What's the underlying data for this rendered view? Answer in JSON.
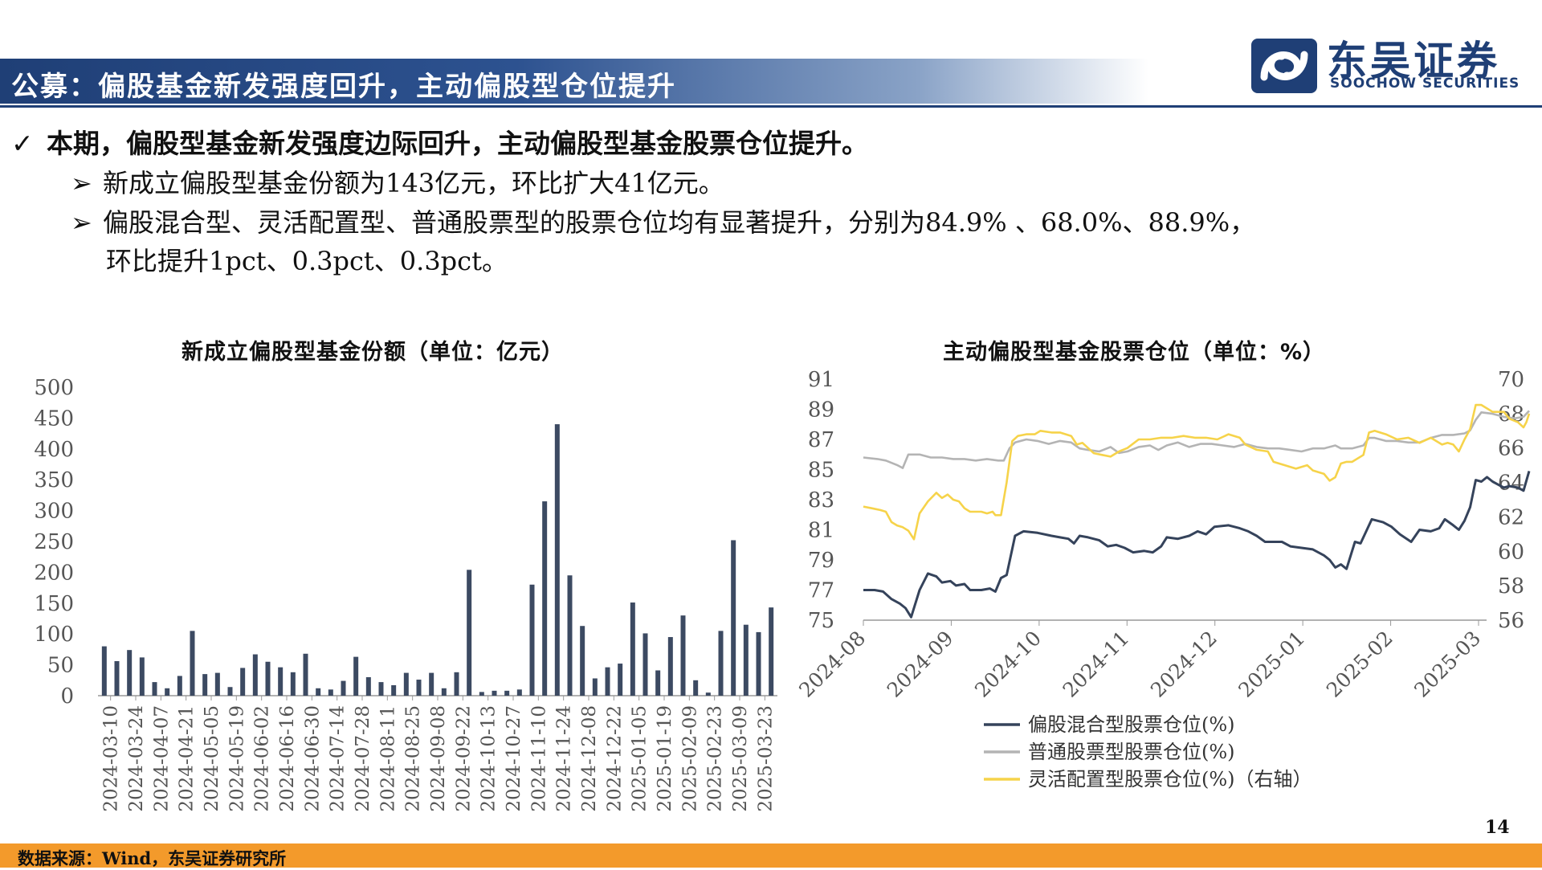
{
  "header": {
    "title": "公募：偏股基金新发强度回升，主动偏股型仓位提升",
    "logo_cn": "东吴证券",
    "logo_en": "SOOCHOW SECURITIES"
  },
  "bullets": {
    "main_mark": "✓",
    "main": "本期，偏股型基金新发强度边际回升，主动偏股型基金股票仓位提升。",
    "sub_mark": "➢",
    "sub1": "新成立偏股型基金份额为143亿元，环比扩大41亿元。",
    "sub2_line1": "偏股混合型、灵活配置型、普通股票型的股票仓位均有显著提升，分别为84.9% 、68.0%、88.9%，",
    "sub2_line2": "环比提升1pct、0.3pct、0.3pct。"
  },
  "footer": {
    "source": "数据来源：Wind，东吴证券研究所",
    "page": "14"
  },
  "colors": {
    "brand": "#1f3f76",
    "bar": "#3c4a62",
    "series_mixed": "#35435b",
    "series_stock": "#b4b4b4",
    "series_flex": "#f6d34a",
    "footer": "#f39a2b"
  },
  "chart_data": [
    {
      "type": "bar",
      "title": "新成立偏股型基金份额（单位：亿元）",
      "ylim": [
        0,
        500
      ],
      "yticks": [
        0,
        50,
        100,
        150,
        200,
        250,
        300,
        350,
        400,
        450,
        500
      ],
      "tick_labels": [
        "2024-03-10",
        "2024-03-24",
        "2024-04-07",
        "2024-04-21",
        "2024-05-05",
        "2024-05-19",
        "2024-06-02",
        "2024-06-16",
        "2024-06-30",
        "2024-07-14",
        "2024-07-28",
        "2024-08-11",
        "2024-08-25",
        "2024-09-08",
        "2024-09-22",
        "2024-10-13",
        "2024-10-27",
        "2024-11-10",
        "2024-11-24",
        "2024-12-08",
        "2024-12-22",
        "2025-01-05",
        "2025-01-19",
        "2025-02-09",
        "2025-02-23",
        "2025-03-09",
        "2025-03-23"
      ],
      "values": [
        80,
        56,
        74,
        62,
        22,
        12,
        32,
        105,
        35,
        37,
        14,
        45,
        67,
        55,
        46,
        38,
        68,
        12,
        10,
        24,
        63,
        30,
        22,
        17,
        37,
        26,
        37,
        12,
        38,
        204,
        6,
        8,
        8,
        10,
        180,
        315,
        440,
        195,
        113,
        28,
        46,
        52,
        151,
        101,
        41,
        95,
        130,
        25,
        5,
        105,
        252,
        115,
        103,
        143
      ]
    },
    {
      "type": "line",
      "title": "主动偏股型基金股票仓位（单位：%）",
      "x_ticks": [
        "2024-08",
        "2024-09",
        "2024-10",
        "2024-11",
        "2024-12",
        "2025-01",
        "2025-02",
        "2025-03"
      ],
      "x_range_days": [
        0,
        219
      ],
      "ylim_left": [
        75,
        91
      ],
      "yticks_left": [
        75,
        77,
        79,
        81,
        83,
        85,
        87,
        89,
        91
      ],
      "ylim_right": [
        56,
        70
      ],
      "yticks_right": [
        56,
        58,
        60,
        62,
        64,
        66,
        68,
        70
      ],
      "series": [
        {
          "name": "偏股混合型股票仓位(%)",
          "axis": "left",
          "points": [
            [
              0,
              77
            ],
            [
              4,
              77
            ],
            [
              7,
              76.9
            ],
            [
              10,
              76.4
            ],
            [
              13,
              76.1
            ],
            [
              15,
              75.8
            ],
            [
              17,
              75.2
            ],
            [
              20,
              77
            ],
            [
              23,
              78.1
            ],
            [
              26,
              77.9
            ],
            [
              28,
              77.5
            ],
            [
              31,
              77.6
            ],
            [
              33,
              77.3
            ],
            [
              36,
              77.4
            ],
            [
              38,
              77
            ],
            [
              42,
              77
            ],
            [
              45,
              77.1
            ],
            [
              47,
              76.9
            ],
            [
              49,
              77.8
            ],
            [
              51,
              78
            ],
            [
              54,
              80.6
            ],
            [
              57,
              80.9
            ],
            [
              62,
              80.8
            ],
            [
              67,
              80.6
            ],
            [
              70,
              80.5
            ],
            [
              73,
              80.4
            ],
            [
              75,
              80.1
            ],
            [
              77,
              80.6
            ],
            [
              80,
              80.5
            ],
            [
              84,
              80.3
            ],
            [
              87,
              79.9
            ],
            [
              90,
              80
            ],
            [
              93,
              79.8
            ],
            [
              96,
              79.5
            ],
            [
              100,
              79.6
            ],
            [
              103,
              79.5
            ],
            [
              106,
              79.9
            ],
            [
              108,
              80.5
            ],
            [
              112,
              80.4
            ],
            [
              116,
              80.6
            ],
            [
              119,
              80.9
            ],
            [
              122,
              80.7
            ],
            [
              125,
              81.2
            ],
            [
              130,
              81.3
            ],
            [
              134,
              81.1
            ],
            [
              137,
              80.9
            ],
            [
              140,
              80.6
            ],
            [
              143,
              80.2
            ],
            [
              146,
              80.2
            ],
            [
              149,
              80.2
            ],
            [
              152,
              79.9
            ],
            [
              156,
              79.8
            ],
            [
              160,
              79.7
            ],
            [
              164,
              79.3
            ],
            [
              166,
              79
            ],
            [
              168,
              78.5
            ],
            [
              170,
              78.7
            ],
            [
              172,
              78.4
            ],
            [
              175,
              80.2
            ],
            [
              177,
              80.1
            ],
            [
              180,
              81.3
            ],
            [
              181,
              81.7
            ],
            [
              185,
              81.5
            ],
            [
              188,
              81.2
            ],
            [
              191,
              80.7
            ],
            [
              195,
              80.2
            ],
            [
              198,
              81
            ],
            [
              202,
              80.9
            ],
            [
              205,
              81.1
            ],
            [
              207,
              81.7
            ],
            [
              210,
              81.3
            ],
            [
              212,
              81
            ],
            [
              214,
              81.6
            ],
            [
              216,
              82.5
            ],
            [
              218,
              84.3
            ],
            [
              220,
              84.2
            ],
            [
              222,
              84.5
            ],
            [
              224,
              84.2
            ],
            [
              226,
              84
            ],
            [
              228,
              83.8
            ],
            [
              230,
              83.9
            ],
            [
              233,
              83.8
            ],
            [
              235,
              83.6
            ],
            [
              237,
              84.9
            ]
          ]
        },
        {
          "name": "普通股票型股票仓位(%)",
          "axis": "left",
          "points": [
            [
              0,
              85.8
            ],
            [
              5,
              85.7
            ],
            [
              8,
              85.6
            ],
            [
              12,
              85.3
            ],
            [
              14,
              85.1
            ],
            [
              16,
              86
            ],
            [
              20,
              86
            ],
            [
              24,
              85.8
            ],
            [
              28,
              85.8
            ],
            [
              32,
              85.7
            ],
            [
              36,
              85.7
            ],
            [
              40,
              85.6
            ],
            [
              44,
              85.7
            ],
            [
              48,
              85.6
            ],
            [
              50,
              85.6
            ],
            [
              52,
              86.4
            ],
            [
              54,
              86.8
            ],
            [
              58,
              87
            ],
            [
              62,
              86.9
            ],
            [
              66,
              86.7
            ],
            [
              70,
              86.9
            ],
            [
              74,
              86.8
            ],
            [
              77,
              86.4
            ],
            [
              80,
              86.3
            ],
            [
              84,
              86.2
            ],
            [
              88,
              86.5
            ],
            [
              91,
              86.1
            ],
            [
              94,
              86.2
            ],
            [
              98,
              86.5
            ],
            [
              102,
              86.6
            ],
            [
              105,
              86.3
            ],
            [
              108,
              86.6
            ],
            [
              112,
              86.8
            ],
            [
              116,
              86.5
            ],
            [
              120,
              86.7
            ],
            [
              124,
              86.7
            ],
            [
              128,
              86.6
            ],
            [
              132,
              86.5
            ],
            [
              136,
              86.7
            ],
            [
              140,
              86.5
            ],
            [
              144,
              86.4
            ],
            [
              148,
              86.4
            ],
            [
              152,
              86.3
            ],
            [
              156,
              86.2
            ],
            [
              160,
              86.4
            ],
            [
              164,
              86.4
            ],
            [
              168,
              86.6
            ],
            [
              170,
              86.4
            ],
            [
              174,
              86.4
            ],
            [
              178,
              86.6
            ],
            [
              180,
              87.1
            ],
            [
              182,
              87.1
            ],
            [
              186,
              86.9
            ],
            [
              190,
              86.9
            ],
            [
              194,
              86.8
            ],
            [
              198,
              86.8
            ],
            [
              202,
              87.1
            ],
            [
              206,
              87.3
            ],
            [
              210,
              87.3
            ],
            [
              214,
              87.4
            ],
            [
              216,
              87.6
            ],
            [
              218,
              88.3
            ],
            [
              220,
              88.8
            ],
            [
              224,
              88.7
            ],
            [
              228,
              88.5
            ],
            [
              232,
              88.4
            ],
            [
              235,
              88.5
            ],
            [
              237,
              88.9
            ]
          ]
        },
        {
          "name": "灵活配置型股票仓位(%)",
          "axis": "right",
          "points": [
            [
              0,
              62.6
            ],
            [
              3,
              62.5
            ],
            [
              6,
              62.4
            ],
            [
              8,
              62.3
            ],
            [
              10,
              61.7
            ],
            [
              12,
              61.5
            ],
            [
              14,
              61.4
            ],
            [
              16,
              61.2
            ],
            [
              18,
              60.7
            ],
            [
              20,
              62.2
            ],
            [
              23,
              62.9
            ],
            [
              26,
              63.4
            ],
            [
              28,
              63.1
            ],
            [
              30,
              63.3
            ],
            [
              32,
              63
            ],
            [
              34,
              62.9
            ],
            [
              36,
              62.5
            ],
            [
              38,
              62.3
            ],
            [
              42,
              62.3
            ],
            [
              44,
              62.2
            ],
            [
              46,
              62.3
            ],
            [
              47,
              62.1
            ],
            [
              49,
              62.1
            ],
            [
              51,
              64
            ],
            [
              53,
              66.4
            ],
            [
              55,
              66.7
            ],
            [
              58,
              66.8
            ],
            [
              61,
              66.8
            ],
            [
              63,
              67
            ],
            [
              67,
              66.9
            ],
            [
              70,
              66.9
            ],
            [
              74,
              66.7
            ],
            [
              76,
              66.2
            ],
            [
              78,
              66.3
            ],
            [
              80,
              66
            ],
            [
              82,
              65.7
            ],
            [
              85,
              65.6
            ],
            [
              88,
              65.5
            ],
            [
              91,
              65.8
            ],
            [
              94,
              66
            ],
            [
              98,
              66.5
            ],
            [
              102,
              66.5
            ],
            [
              106,
              66.6
            ],
            [
              110,
              66.6
            ],
            [
              114,
              66.7
            ],
            [
              118,
              66.6
            ],
            [
              122,
              66.6
            ],
            [
              126,
              66.5
            ],
            [
              130,
              66.8
            ],
            [
              134,
              66.6
            ],
            [
              136,
              66.2
            ],
            [
              140,
              65.9
            ],
            [
              144,
              65.8
            ],
            [
              146,
              65.2
            ],
            [
              150,
              65
            ],
            [
              154,
              64.8
            ],
            [
              158,
              65
            ],
            [
              160,
              64.7
            ],
            [
              164,
              64.5
            ],
            [
              166,
              64.1
            ],
            [
              168,
              64.3
            ],
            [
              170,
              65.1
            ],
            [
              172,
              65.2
            ],
            [
              174,
              65.2
            ],
            [
              178,
              65.6
            ],
            [
              180,
              66.9
            ],
            [
              182,
              67
            ],
            [
              186,
              66.8
            ],
            [
              190,
              66.5
            ],
            [
              194,
              66.6
            ],
            [
              198,
              66.3
            ],
            [
              202,
              66.6
            ],
            [
              206,
              66.2
            ],
            [
              208,
              66.3
            ],
            [
              210,
              66.2
            ],
            [
              212,
              65.8
            ],
            [
              214,
              66.5
            ],
            [
              216,
              67.1
            ],
            [
              218,
              68.5
            ],
            [
              220,
              68.5
            ],
            [
              224,
              68.1
            ],
            [
              228,
              68.1
            ],
            [
              230,
              67.7
            ],
            [
              233,
              67.5
            ],
            [
              235,
              67.2
            ],
            [
              236,
              67.5
            ],
            [
              237,
              68
            ]
          ]
        }
      ]
    }
  ]
}
